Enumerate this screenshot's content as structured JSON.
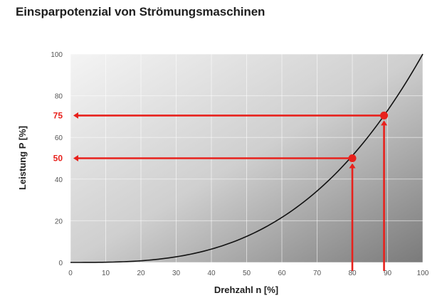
{
  "title": "Einsparpotenzial von Strömungsmaschinen",
  "colors": {
    "accent": "#e8211c",
    "curve": "#111111"
  },
  "chart_data": {
    "type": "line",
    "title": "Einsparpotenzial von Strömungsmaschinen",
    "xlabel": "Drehzahl n [%]",
    "ylabel": "Leistung P [%]",
    "xlim": [
      0,
      100
    ],
    "ylim": [
      0,
      100
    ],
    "x_ticks": [
      "0",
      "10",
      "20",
      "30",
      "40",
      "50",
      "60",
      "70",
      "80",
      "90",
      "100"
    ],
    "y_ticks": [
      "0",
      "20",
      "40",
      "60",
      "80",
      "100"
    ],
    "grid": true,
    "series": [
      {
        "x": [
          0,
          10,
          20,
          30,
          40,
          50,
          60,
          70,
          80,
          90,
          100
        ],
        "y": [
          0,
          0.1,
          0.8,
          2.7,
          6.4,
          12.5,
          21.6,
          34.3,
          51.2,
          72.9,
          100
        ]
      }
    ],
    "highlights": [
      {
        "label": "75",
        "x": 89,
        "y": 70.5
      },
      {
        "label": "50",
        "x": 80,
        "y": 50
      }
    ]
  }
}
